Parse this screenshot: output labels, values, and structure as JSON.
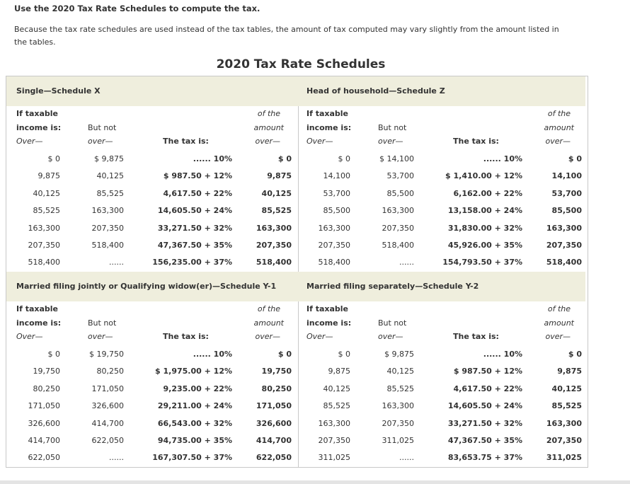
{
  "instruction": "Use the 2020 Tax Rate Schedules to compute the tax.",
  "note": "Because the tax rate schedules are used instead of the tax tables, the amount of tax computed may vary slightly from the amount listed in the tables.",
  "title": "2020 Tax Rate Schedules",
  "column_headers": {
    "if_taxable": "If taxable",
    "income_is": "income is:",
    "over": "Over—",
    "but_not": "But not",
    "but_not_over": "over—",
    "tax_is": "The tax is:",
    "of_the": "of the",
    "amount": "amount",
    "amount_over": "over—"
  },
  "schedules": [
    {
      "title": "Single—Schedule X",
      "rows": [
        [
          "$ 0",
          "$ 9,875",
          "...... 10%",
          "$ 0"
        ],
        [
          "9,875",
          "40,125",
          "$ 987.50 + 12%",
          "9,875"
        ],
        [
          "40,125",
          "85,525",
          "4,617.50 + 22%",
          "40,125"
        ],
        [
          "85,525",
          "163,300",
          "14,605.50 + 24%",
          "85,525"
        ],
        [
          "163,300",
          "207,350",
          "33,271.50 + 32%",
          "163,300"
        ],
        [
          "207,350",
          "518,400",
          "47,367.50 + 35%",
          "207,350"
        ],
        [
          "518,400",
          "......",
          "156,235.00 + 37%",
          "518,400"
        ]
      ]
    },
    {
      "title": "Head of household—Schedule Z",
      "rows": [
        [
          "$ 0",
          "$ 14,100",
          "...... 10%",
          "$ 0"
        ],
        [
          "14,100",
          "53,700",
          "$ 1,410.00 + 12%",
          "14,100"
        ],
        [
          "53,700",
          "85,500",
          "6,162.00 + 22%",
          "53,700"
        ],
        [
          "85,500",
          "163,300",
          "13,158.00 + 24%",
          "85,500"
        ],
        [
          "163,300",
          "207,350",
          "31,830.00 + 32%",
          "163,300"
        ],
        [
          "207,350",
          "518,400",
          "45,926.00 + 35%",
          "207,350"
        ],
        [
          "518,400",
          "......",
          "154,793.50 + 37%",
          "518,400"
        ]
      ]
    },
    {
      "title": "Married filing jointly or Qualifying widow(er)—Schedule Y-1",
      "rows": [
        [
          "$ 0",
          "$ 19,750",
          "...... 10%",
          "$ 0"
        ],
        [
          "19,750",
          "80,250",
          "$ 1,975.00 + 12%",
          "19,750"
        ],
        [
          "80,250",
          "171,050",
          "9,235.00 + 22%",
          "80,250"
        ],
        [
          "171,050",
          "326,600",
          "29,211.00 + 24%",
          "171,050"
        ],
        [
          "326,600",
          "414,700",
          "66,543.00 + 32%",
          "326,600"
        ],
        [
          "414,700",
          "622,050",
          "94,735.00 + 35%",
          "414,700"
        ],
        [
          "622,050",
          "......",
          "167,307.50 + 37%",
          "622,050"
        ]
      ]
    },
    {
      "title": "Married filing separately—Schedule Y-2",
      "rows": [
        [
          "$ 0",
          "$ 9,875",
          "...... 10%",
          "$ 0"
        ],
        [
          "9,875",
          "40,125",
          "$ 987.50 + 12%",
          "9,875"
        ],
        [
          "40,125",
          "85,525",
          "4,617.50 + 22%",
          "40,125"
        ],
        [
          "85,525",
          "163,300",
          "14,605.50 + 24%",
          "85,525"
        ],
        [
          "163,300",
          "207,350",
          "33,271.50 + 32%",
          "163,300"
        ],
        [
          "207,350",
          "311,025",
          "47,367.50 + 35%",
          "207,350"
        ],
        [
          "311,025",
          "......",
          "83,653.75 + 37%",
          "311,025"
        ]
      ]
    }
  ]
}
